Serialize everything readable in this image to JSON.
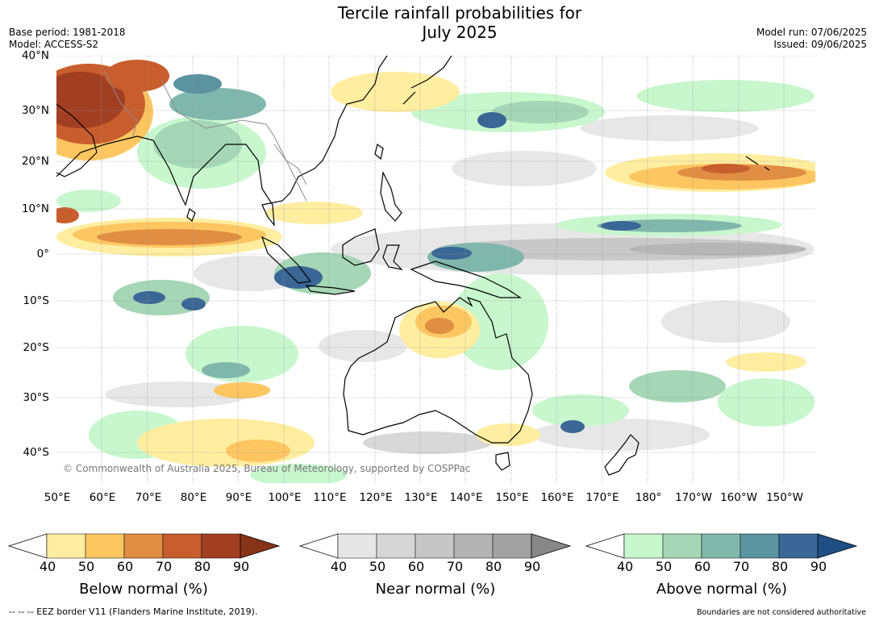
{
  "header": {
    "title": "Tercile rainfall probabilities for\nJuly 2025",
    "base_period": "Base period: 1981-2018",
    "model": "Model: ACCESS-S2",
    "model_run": "Model run: 07/06/2025",
    "issued": "Issued: 09/06/2025"
  },
  "map": {
    "lat_labels": [
      "40°N",
      "30°N",
      "20°N",
      "10°N",
      "0°",
      "10°S",
      "20°S",
      "30°S",
      "40°S"
    ],
    "lon_labels": [
      "50°E",
      "60°E",
      "70°E",
      "80°E",
      "90°E",
      "100°E",
      "110°E",
      "120°E",
      "130°E",
      "140°E",
      "150°E",
      "160°E",
      "170°E",
      "180°",
      "170°W",
      "160°W",
      "150°W"
    ],
    "copyright": "© Commonwealth of Australia 2025, Bureau of Meteorology, supported by COSPPac",
    "colors": {
      "ocean_blank": "#ffffff",
      "coast": "#000000",
      "border": "#8c8c8c"
    }
  },
  "colorbars": [
    {
      "label": "Below normal (%)",
      "ticks": [
        "40",
        "50",
        "60",
        "70",
        "80",
        "90"
      ],
      "colors": [
        "#ffeda0",
        "#fdc661",
        "#e08e44",
        "#c85e2d",
        "#a23f22",
        "#87331a"
      ]
    },
    {
      "label": "Near normal (%)",
      "ticks": [
        "40",
        "50",
        "60",
        "70",
        "80",
        "90"
      ],
      "colors": [
        "#e6e6e6",
        "#d6d6d6",
        "#c6c6c6",
        "#b3b3b3",
        "#a1a1a1",
        "#888888"
      ]
    },
    {
      "label": "Above normal (%)",
      "ticks": [
        "40",
        "50",
        "60",
        "70",
        "80",
        "90"
      ],
      "colors": [
        "#c8f7cd",
        "#a5d6b6",
        "#80b7ad",
        "#5c93a0",
        "#3a6796",
        "#1e4e84"
      ]
    }
  ],
  "footer": {
    "eez": "--  --  -- EEZ border V11 (Flanders Marine Institute, 2019).",
    "boundaries": "Boundaries are not considered authoritative"
  }
}
